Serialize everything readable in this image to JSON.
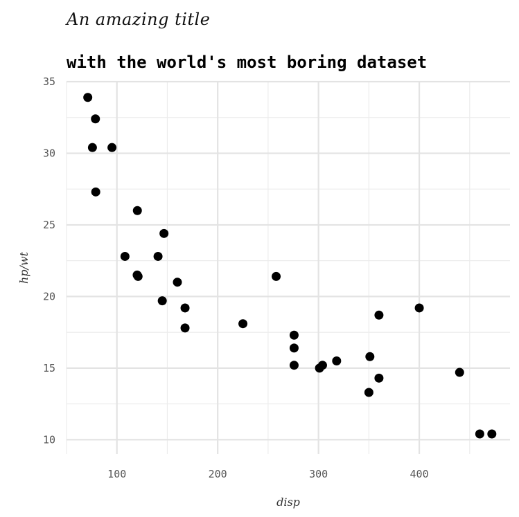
{
  "chart_data": {
    "type": "scatter",
    "title": "An amazing title",
    "subtitle": "with the world's most boring dataset",
    "xlabel": "disp",
    "ylabel": "hp/wt",
    "xlim": [
      50,
      490
    ],
    "ylim": [
      9,
      35
    ],
    "xticks": [
      100,
      200,
      300,
      400
    ],
    "yticks": [
      10,
      15,
      20,
      25,
      30,
      35
    ],
    "grid": true,
    "point_color": "#000000",
    "series": [
      {
        "x": [
          71.1,
          78.7,
          75.7,
          95.1,
          79.0,
          120.3,
          146.7,
          108.0,
          140.8,
          120.1,
          121.0,
          160.0,
          145.0,
          167.6,
          167.6,
          225.0,
          258.0,
          275.8,
          275.8,
          275.8,
          301.0,
          304.0,
          318.0,
          350.0,
          351.0,
          360.0,
          360.0,
          400.0,
          440.0,
          460.0,
          472.0
        ],
        "y": [
          33.9,
          32.4,
          30.4,
          30.4,
          27.3,
          26.0,
          24.4,
          22.8,
          22.8,
          21.5,
          21.4,
          21.0,
          19.7,
          19.2,
          17.8,
          18.1,
          21.4,
          17.3,
          16.4,
          15.2,
          15.0,
          15.2,
          15.5,
          13.3,
          15.8,
          18.7,
          14.3,
          19.2,
          14.7,
          10.4,
          10.4
        ]
      }
    ]
  }
}
